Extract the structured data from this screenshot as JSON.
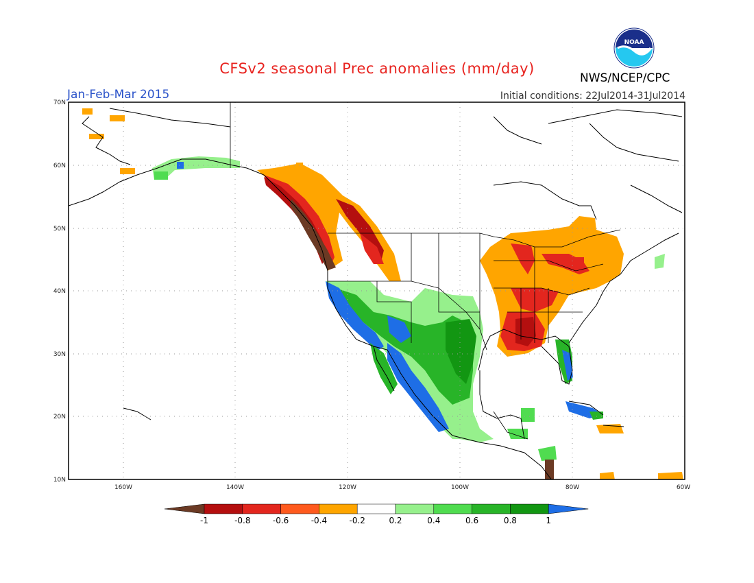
{
  "header": {
    "title": "CFSv2 seasonal Prec anomalies (mm/day)",
    "season": "Jan-Feb-Mar 2015",
    "initial_conditions": "Initial conditions: 22Jul2014-31Jul2014",
    "agency": "NWS/NCEP/CPC",
    "logo_text": "NOAA"
  },
  "map": {
    "lon_range": [
      -172,
      -60
    ],
    "lat_range": [
      10,
      70
    ],
    "lat_labels": [
      "70N",
      "60N",
      "50N",
      "40N",
      "30N",
      "20N",
      "10N"
    ],
    "lon_labels": [
      "160W",
      "140W",
      "120W",
      "100W",
      "80W",
      "60W"
    ],
    "grid": "dotted"
  },
  "colorbar": {
    "labels": [
      "-1",
      "-0.8",
      "-0.6",
      "-0.4",
      "-0.2",
      "0.2",
      "0.4",
      "0.6",
      "0.8",
      "1"
    ],
    "colors": [
      "#6b3a24",
      "#b40f0f",
      "#e3261e",
      "#ff5a1e",
      "#ffa500",
      "#ffffff",
      "#96f08c",
      "#50dc50",
      "#28b428",
      "#129612",
      "#1e6ee6"
    ]
  }
}
